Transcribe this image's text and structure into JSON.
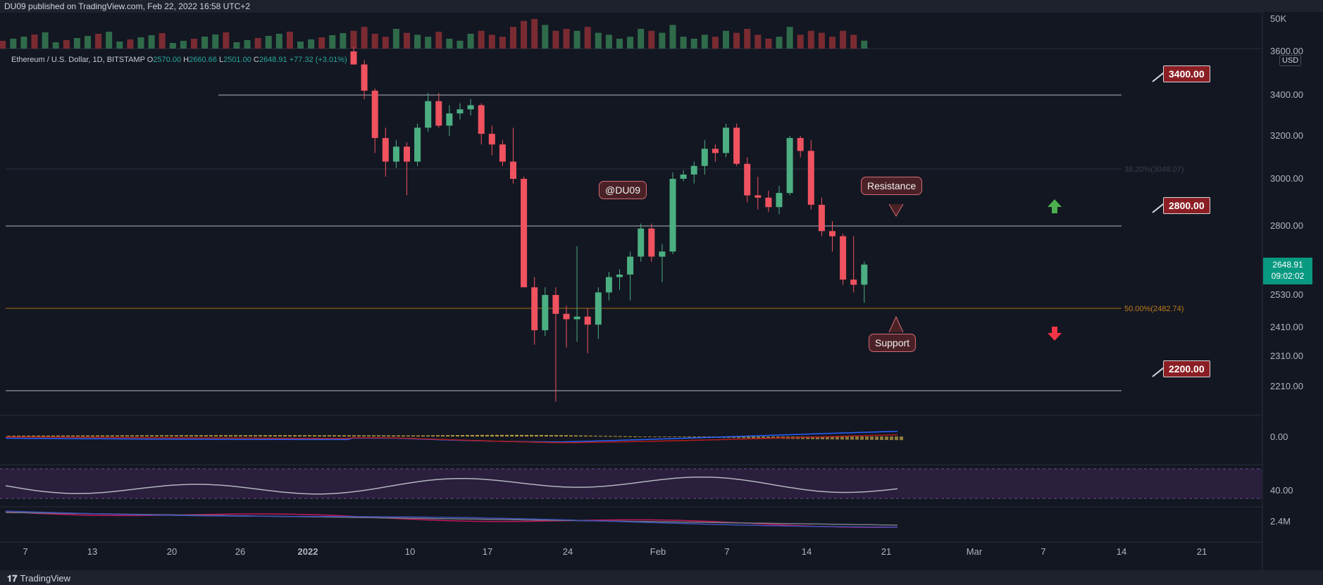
{
  "header": {
    "published": "DU09 published on TradingView.com, Feb 22, 2022 16:58 UTC+2"
  },
  "footer": {
    "brand": "TradingView"
  },
  "legend": {
    "symbol": "Ethereum / U.S. Dollar, 1D, BITSTAMP",
    "o_label": "O",
    "o": "2570.00",
    "h_label": "H",
    "h": "2660.66",
    "l_label": "L",
    "l": "2501.00",
    "c_label": "C",
    "c": "2648.91",
    "change": "+77.32 (+3.01%)"
  },
  "annotations": {
    "author": "@DU09",
    "resistance": "Resistance",
    "support": "Support",
    "level_3400": "3400.00",
    "level_2800": "2800.00",
    "level_2200": "2200.00"
  },
  "current_price": {
    "value": "2648.91",
    "countdown": "09:02:02",
    "currency": "USD"
  },
  "colors": {
    "up": "#4caf82",
    "down": "#f0525f",
    "background": "#131722",
    "fib": "#a86b14"
  },
  "chart_data": {
    "type": "candlestick",
    "price_axis_ticks": [
      "3600.00",
      "3400.00",
      "3200.00",
      "3000.00",
      "2800.00",
      "2530.00",
      "2410.00",
      "2310.00",
      "2210.00"
    ],
    "volume_axis_tick": "50K",
    "macd_axis_tick": "0.00",
    "rsi_axis_tick": "40.00",
    "obv_axis_tick": "2.4M",
    "time_axis_ticks": [
      "7",
      "13",
      "20",
      "26",
      "2022",
      "10",
      "17",
      "24",
      "Feb",
      "7",
      "14",
      "21",
      "Mar",
      "7",
      "14",
      "21"
    ],
    "horizontal_levels": [
      3400,
      2800,
      2200
    ],
    "fib_levels": [
      {
        "label": "38.20%(3048.07)",
        "price": 3048.07
      },
      {
        "label": "50.00%(2482.74)",
        "price": 2482.74
      }
    ],
    "candles": [
      {
        "date": "Jan 5",
        "o": 3600,
        "h": 3620,
        "l": 3540,
        "c": 3540
      },
      {
        "date": "Jan 6",
        "o": 3540,
        "h": 3560,
        "l": 3380,
        "c": 3420
      },
      {
        "date": "Jan 7",
        "o": 3420,
        "h": 3430,
        "l": 3120,
        "c": 3190
      },
      {
        "date": "Jan 8",
        "o": 3190,
        "h": 3240,
        "l": 3010,
        "c": 3080
      },
      {
        "date": "Jan 9",
        "o": 3080,
        "h": 3180,
        "l": 3050,
        "c": 3150
      },
      {
        "date": "Jan 10",
        "o": 3150,
        "h": 3170,
        "l": 2930,
        "c": 3080
      },
      {
        "date": "Jan 11",
        "o": 3080,
        "h": 3260,
        "l": 3060,
        "c": 3240
      },
      {
        "date": "Jan 12",
        "o": 3240,
        "h": 3410,
        "l": 3220,
        "c": 3370
      },
      {
        "date": "Jan 13",
        "o": 3370,
        "h": 3410,
        "l": 3240,
        "c": 3250
      },
      {
        "date": "Jan 14",
        "o": 3250,
        "h": 3350,
        "l": 3200,
        "c": 3310
      },
      {
        "date": "Jan 15",
        "o": 3310,
        "h": 3360,
        "l": 3280,
        "c": 3330
      },
      {
        "date": "Jan 16",
        "o": 3330,
        "h": 3380,
        "l": 3300,
        "c": 3350
      },
      {
        "date": "Jan 17",
        "o": 3350,
        "h": 3360,
        "l": 3160,
        "c": 3210
      },
      {
        "date": "Jan 18",
        "o": 3210,
        "h": 3250,
        "l": 3110,
        "c": 3160
      },
      {
        "date": "Jan 19",
        "o": 3160,
        "h": 3180,
        "l": 3060,
        "c": 3080
      },
      {
        "date": "Jan 20",
        "o": 3080,
        "h": 3240,
        "l": 2980,
        "c": 3000
      },
      {
        "date": "Jan 21",
        "o": 3000,
        "h": 3010,
        "l": 2560,
        "c": 2560
      },
      {
        "date": "Jan 22",
        "o": 2560,
        "h": 2600,
        "l": 2350,
        "c": 2400
      },
      {
        "date": "Jan 23",
        "o": 2400,
        "h": 2560,
        "l": 2380,
        "c": 2530
      },
      {
        "date": "Jan 24",
        "o": 2530,
        "h": 2560,
        "l": 2160,
        "c": 2460
      },
      {
        "date": "Jan 25",
        "o": 2460,
        "h": 2490,
        "l": 2340,
        "c": 2440
      },
      {
        "date": "Jan 26",
        "o": 2440,
        "h": 2720,
        "l": 2360,
        "c": 2450
      },
      {
        "date": "Jan 27",
        "o": 2450,
        "h": 2480,
        "l": 2320,
        "c": 2420
      },
      {
        "date": "Jan 28",
        "o": 2420,
        "h": 2560,
        "l": 2370,
        "c": 2540
      },
      {
        "date": "Jan 29",
        "o": 2540,
        "h": 2620,
        "l": 2510,
        "c": 2600
      },
      {
        "date": "Jan 30",
        "o": 2600,
        "h": 2630,
        "l": 2550,
        "c": 2610
      },
      {
        "date": "Jan 31",
        "o": 2610,
        "h": 2700,
        "l": 2510,
        "c": 2680
      },
      {
        "date": "Feb 1",
        "o": 2680,
        "h": 2810,
        "l": 2660,
        "c": 2790
      },
      {
        "date": "Feb 2",
        "o": 2790,
        "h": 2810,
        "l": 2660,
        "c": 2680
      },
      {
        "date": "Feb 3",
        "o": 2680,
        "h": 2730,
        "l": 2580,
        "c": 2700
      },
      {
        "date": "Feb 4",
        "o": 2700,
        "h": 3030,
        "l": 2690,
        "c": 3000
      },
      {
        "date": "Feb 5",
        "o": 3000,
        "h": 3040,
        "l": 2990,
        "c": 3020
      },
      {
        "date": "Feb 6",
        "o": 3020,
        "h": 3080,
        "l": 2980,
        "c": 3060
      },
      {
        "date": "Feb 7",
        "o": 3060,
        "h": 3180,
        "l": 3020,
        "c": 3140
      },
      {
        "date": "Feb 8",
        "o": 3140,
        "h": 3160,
        "l": 3080,
        "c": 3120
      },
      {
        "date": "Feb 9",
        "o": 3120,
        "h": 3260,
        "l": 3100,
        "c": 3240
      },
      {
        "date": "Feb 10",
        "o": 3240,
        "h": 3260,
        "l": 3060,
        "c": 3070
      },
      {
        "date": "Feb 11",
        "o": 3070,
        "h": 3100,
        "l": 2900,
        "c": 2930
      },
      {
        "date": "Feb 12",
        "o": 2930,
        "h": 3010,
        "l": 2870,
        "c": 2920
      },
      {
        "date": "Feb 13",
        "o": 2920,
        "h": 2950,
        "l": 2860,
        "c": 2880
      },
      {
        "date": "Feb 14",
        "o": 2880,
        "h": 2970,
        "l": 2850,
        "c": 2940
      },
      {
        "date": "Feb 15",
        "o": 2940,
        "h": 3200,
        "l": 2930,
        "c": 3190
      },
      {
        "date": "Feb 16",
        "o": 3190,
        "h": 3200,
        "l": 3100,
        "c": 3130
      },
      {
        "date": "Feb 17",
        "o": 3130,
        "h": 3180,
        "l": 2870,
        "c": 2890
      },
      {
        "date": "Feb 18",
        "o": 2890,
        "h": 2920,
        "l": 2760,
        "c": 2780
      },
      {
        "date": "Feb 19",
        "o": 2780,
        "h": 2820,
        "l": 2700,
        "c": 2760
      },
      {
        "date": "Feb 20",
        "o": 2760,
        "h": 2770,
        "l": 2570,
        "c": 2590
      },
      {
        "date": "Feb 21",
        "o": 2590,
        "h": 2760,
        "l": 2540,
        "c": 2570
      },
      {
        "date": "Feb 22",
        "o": 2570,
        "h": 2660.66,
        "l": 2501,
        "c": 2648.91
      }
    ],
    "volume": [
      18,
      22,
      15,
      12,
      20,
      16,
      14,
      12,
      17,
      10,
      8,
      15,
      18,
      14,
      12,
      22,
      28,
      30,
      24,
      18,
      20,
      18,
      22,
      16,
      14,
      10,
      12,
      20,
      18,
      16,
      24,
      12,
      10,
      14,
      12,
      18,
      16,
      20,
      14,
      10,
      12,
      22,
      14,
      18,
      16,
      12,
      18,
      14,
      8
    ]
  }
}
